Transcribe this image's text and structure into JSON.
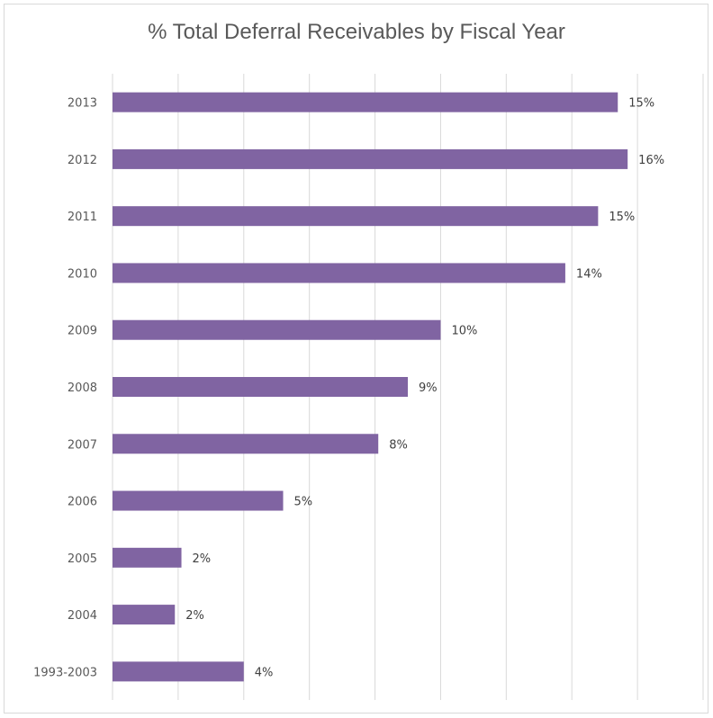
{
  "chart_data": {
    "type": "bar",
    "orientation": "horizontal",
    "title": "% Total Deferral Receivables by Fiscal Year",
    "categories": [
      "2013",
      "2012",
      "2011",
      "2010",
      "2009",
      "2008",
      "2007",
      "2006",
      "2005",
      "2004",
      "1993-2003"
    ],
    "values": [
      15.4,
      15.7,
      14.8,
      13.8,
      10.0,
      9.0,
      8.1,
      5.2,
      2.1,
      1.9,
      4.0
    ],
    "data_labels": [
      "15%",
      "16%",
      "15%",
      "14%",
      "10%",
      "9%",
      "8%",
      "5%",
      "2%",
      "2%",
      "4%"
    ],
    "xlim": [
      0,
      18
    ],
    "grid": "vertical",
    "bar_color": "#8064a2",
    "legend": "none"
  }
}
